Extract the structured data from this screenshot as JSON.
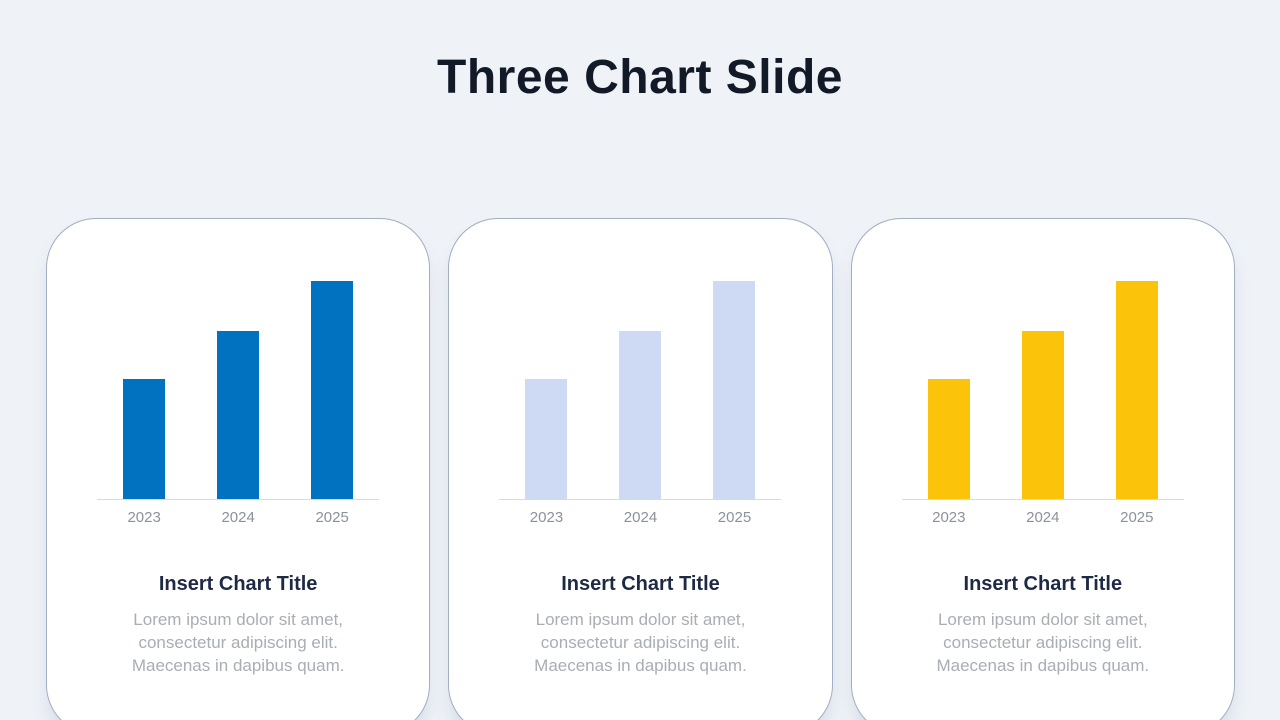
{
  "slide": {
    "title": "Three Chart Slide"
  },
  "cards": [
    {
      "title": "Insert Chart Title",
      "body": "Lorem ipsum dolor sit amet, consectetur adipiscing elit. Maecenas in dapibus quam."
    },
    {
      "title": "Insert Chart Title",
      "body": "Lorem ipsum dolor sit amet, consectetur adipiscing elit. Maecenas in dapibus quam."
    },
    {
      "title": "Insert Chart Title",
      "body": "Lorem ipsum dolor sit amet, consectetur adipiscing elit. Maecenas in dapibus quam."
    }
  ],
  "chart_data": [
    {
      "type": "bar",
      "categories": [
        "2023",
        "2024",
        "2025"
      ],
      "values": [
        55,
        77,
        100
      ],
      "title": "Insert Chart Title",
      "xlabel": "",
      "ylabel": "",
      "ylim": [
        0,
        100
      ],
      "grid": false,
      "legend": false,
      "bar_color": "#0072C0"
    },
    {
      "type": "bar",
      "categories": [
        "2023",
        "2024",
        "2025"
      ],
      "values": [
        55,
        77,
        100
      ],
      "title": "Insert Chart Title",
      "xlabel": "",
      "ylabel": "",
      "ylim": [
        0,
        100
      ],
      "grid": false,
      "legend": false,
      "bar_color": "#CED9F3"
    },
    {
      "type": "bar",
      "categories": [
        "2023",
        "2024",
        "2025"
      ],
      "values": [
        55,
        77,
        100
      ],
      "title": "Insert Chart Title",
      "xlabel": "",
      "ylabel": "",
      "ylim": [
        0,
        100
      ],
      "grid": false,
      "legend": false,
      "bar_color": "#FCC30B"
    }
  ],
  "colors": {
    "background": "#EFF2F7",
    "card_background": "#FFFFFF",
    "card_border": "#A2AEC1",
    "axis_line": "#D8DBDF",
    "slide_title": "#121A28",
    "card_title": "#1E2A44",
    "tick_label": "#8C929B",
    "body_text": "#A9ADB4"
  }
}
